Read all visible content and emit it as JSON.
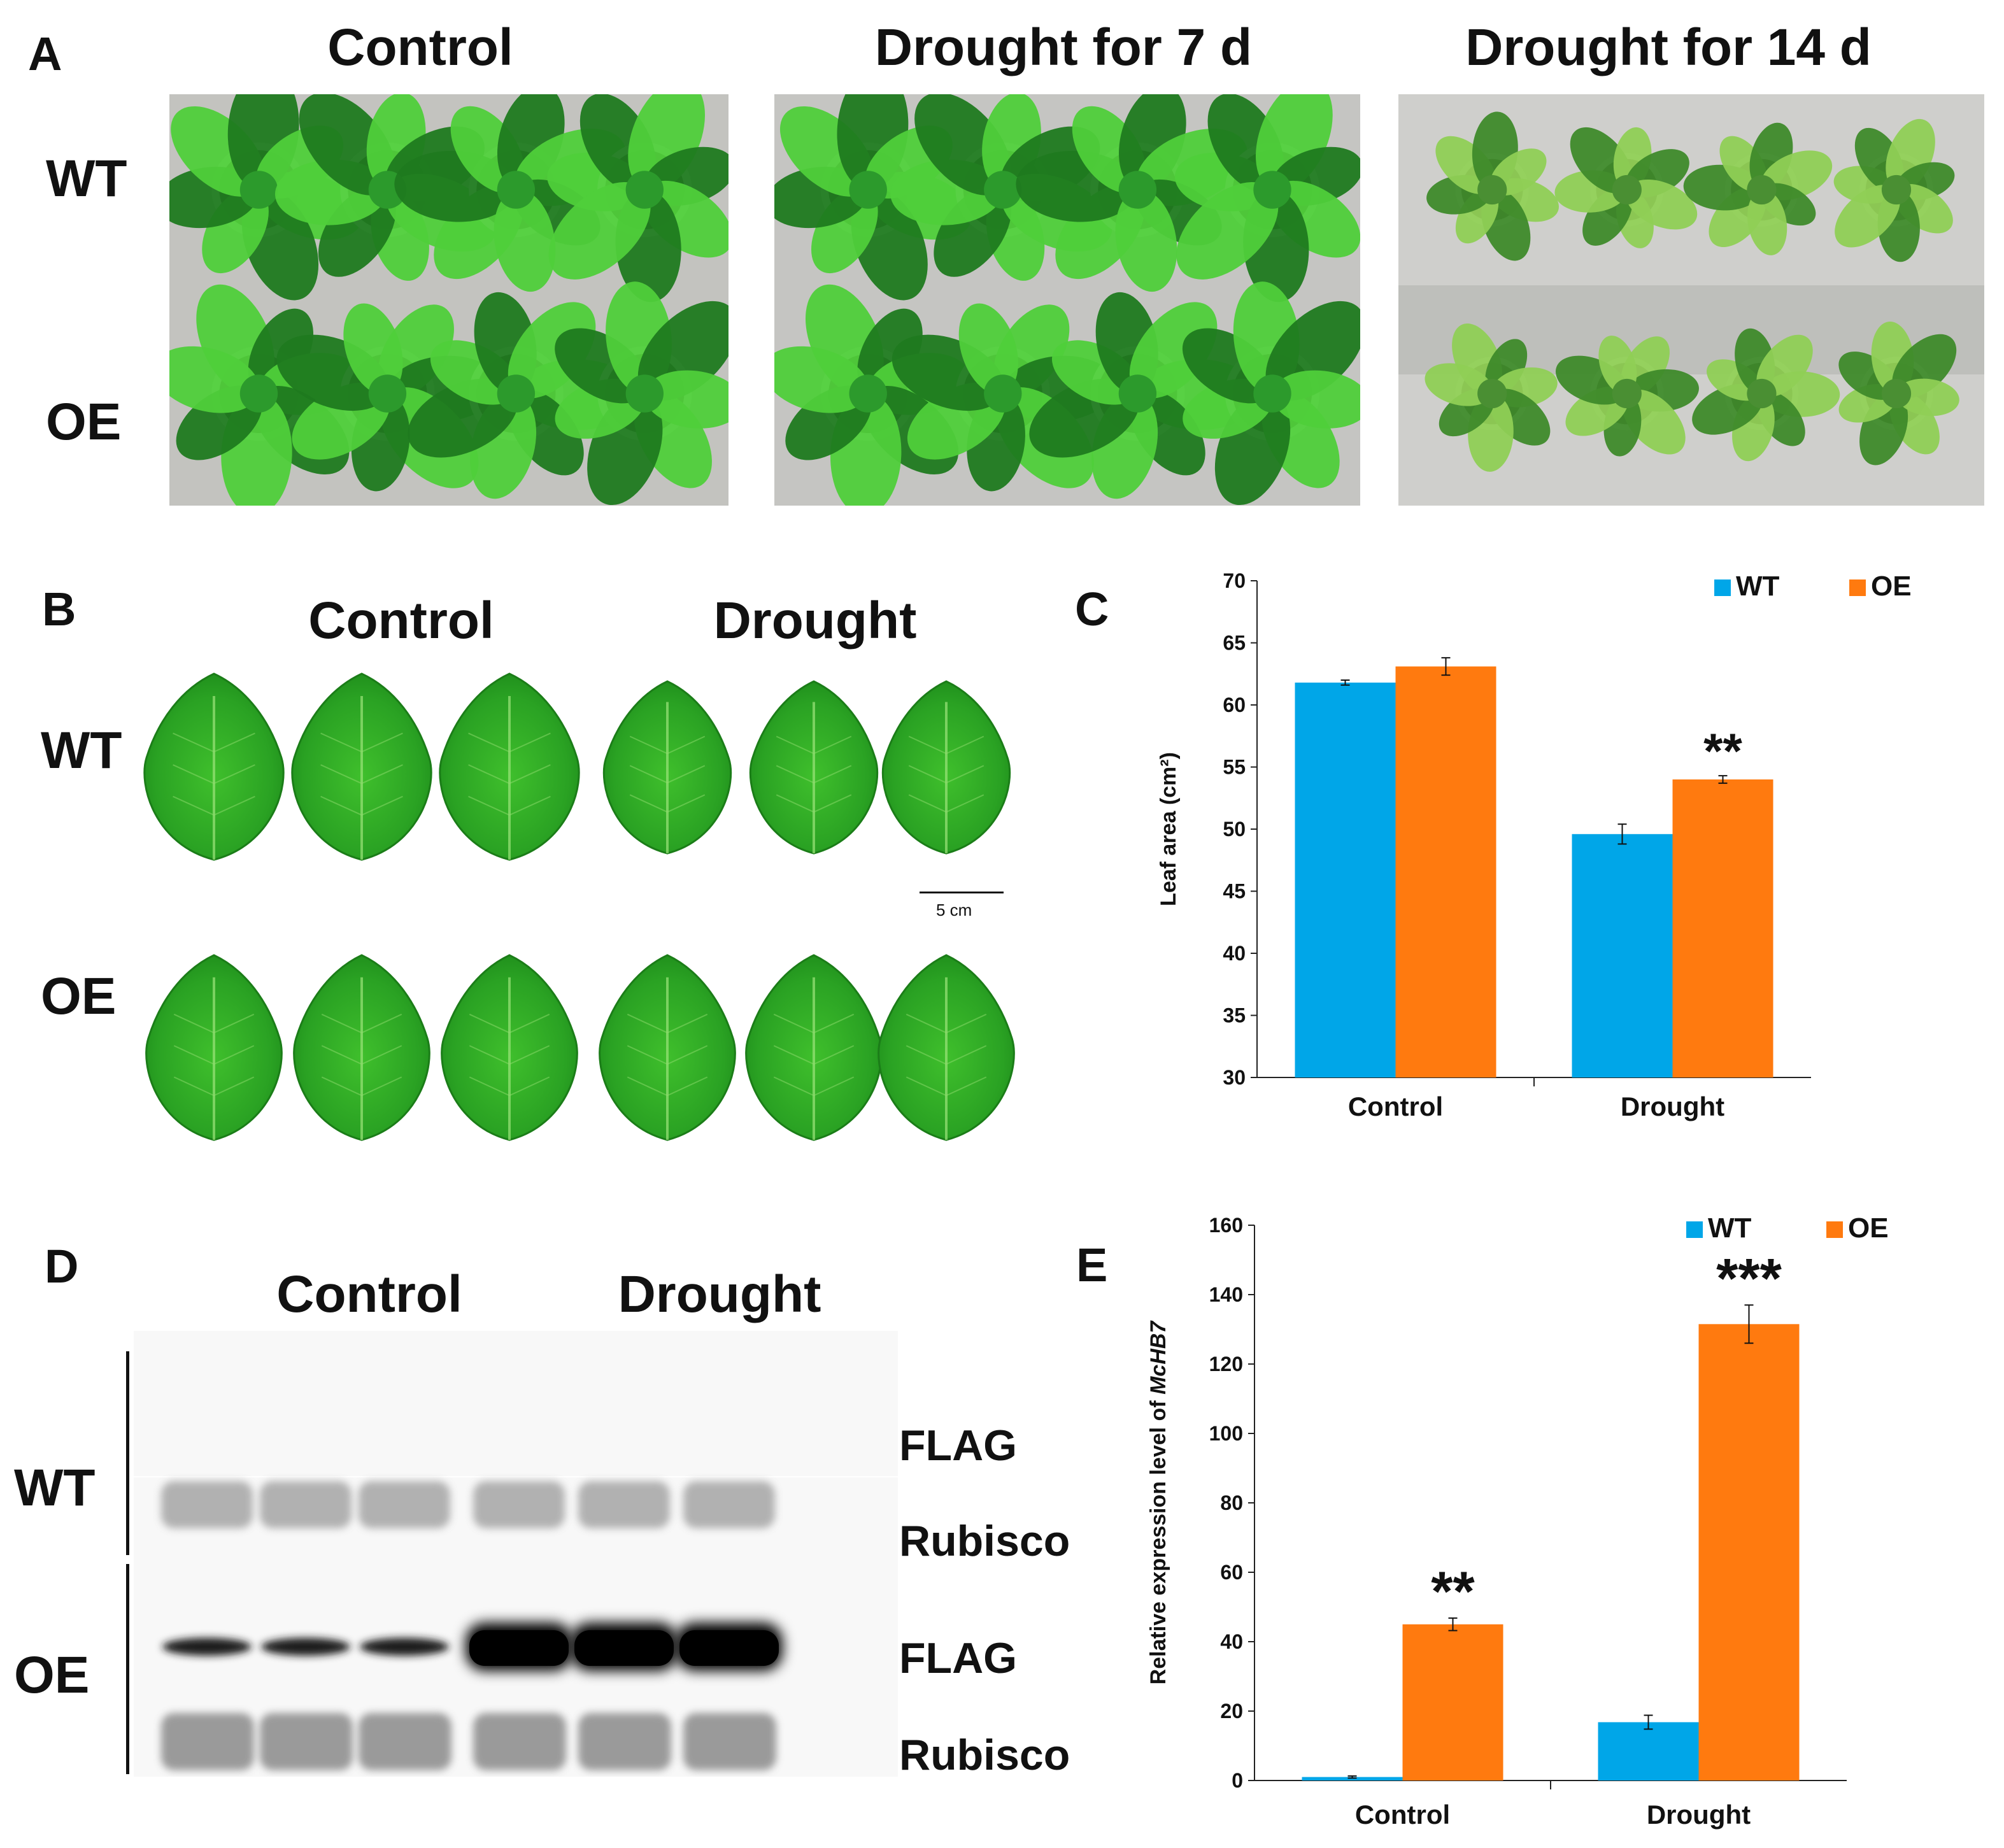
{
  "panels": {
    "A": {
      "letter": "A",
      "columns": [
        "Control",
        "Drought for 7 d",
        "Drought for 14 d"
      ],
      "rows": [
        "WT",
        "OE"
      ]
    },
    "B": {
      "letter": "B",
      "columns": [
        "Control",
        "Drought"
      ],
      "rows": [
        "WT",
        "OE"
      ],
      "scale_bar": "5 cm"
    },
    "D": {
      "letter": "D",
      "columns": [
        "Control",
        "Drought"
      ],
      "rows": [
        "WT",
        "OE"
      ],
      "bands": [
        "FLAG",
        "Rubisco",
        "FLAG",
        "Rubisco"
      ]
    }
  },
  "colors": {
    "wt": "#00A6E8",
    "oe": "#FF7A0F",
    "leaf_dark": "#1f7a1f",
    "leaf_light": "#4fcf3a",
    "pot": "#efefef",
    "bench": "#c9c9c6"
  },
  "chart_data": [
    {
      "panel": "C",
      "letter": "C",
      "type": "bar",
      "categories": [
        "Control",
        "Drought"
      ],
      "series": [
        {
          "name": "WT",
          "values": [
            61.8,
            49.6
          ],
          "errors": [
            0.2,
            0.8
          ]
        },
        {
          "name": "OE",
          "values": [
            63.1,
            54.0
          ],
          "errors": [
            0.7,
            0.3
          ]
        }
      ],
      "ylabel": "Leaf area (cm²)",
      "ylim": [
        30,
        70
      ],
      "yticks": [
        "30",
        "35",
        "40",
        "45",
        "50",
        "55",
        "60",
        "65",
        "70"
      ],
      "annotations": [
        {
          "category": "Drought",
          "series": "OE",
          "text": "**"
        }
      ],
      "legend": "top-right"
    },
    {
      "panel": "E",
      "letter": "E",
      "type": "bar",
      "categories": [
        "Control",
        "Drought"
      ],
      "series": [
        {
          "name": "WT",
          "values": [
            1.0,
            16.8
          ],
          "errors": [
            0.3,
            2.0
          ]
        },
        {
          "name": "OE",
          "values": [
            45.0,
            131.5
          ],
          "errors": [
            1.8,
            5.5
          ]
        }
      ],
      "ylabel_prefix": "Relative expression level of ",
      "ylabel_gene": "McHB7",
      "ylim": [
        0,
        160
      ],
      "yticks": [
        "0",
        "20",
        "40",
        "60",
        "80",
        "100",
        "120",
        "140",
        "160"
      ],
      "annotations": [
        {
          "category": "Control",
          "series": "OE",
          "text": "**"
        },
        {
          "category": "Drought",
          "series": "OE",
          "text": "***"
        }
      ],
      "legend": "top-right"
    }
  ]
}
